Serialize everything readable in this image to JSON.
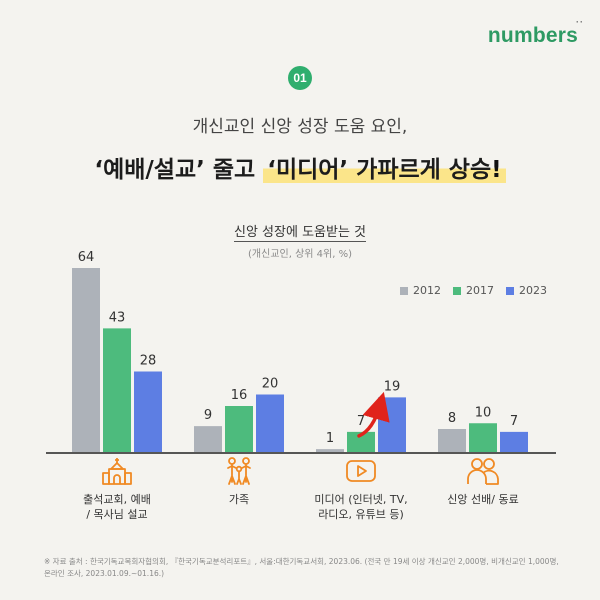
{
  "brand": {
    "logo": "numbers",
    "logo_dots": "··"
  },
  "badge": "01",
  "subtitle": "개신교인 신앙 성장 도움 요인,",
  "headline": {
    "part1": "‘예배/설교’ 줄고 ",
    "highlight": "‘미디어’ 가파르게 상승",
    "emphasis": "!"
  },
  "chart_data": {
    "type": "bar",
    "title": "신앙 성장에 도움받는 것",
    "note": "(개신교인, 상위 4위, %)",
    "categories": [
      "출석교회, 예배\n/ 목사님 설교",
      "가족",
      "미디어 (인터넷, TV,\n라디오, 유튜브 등)",
      "신앙 선배/ 동료"
    ],
    "series": [
      {
        "name": "2012",
        "color": "#adb2b9",
        "values": [
          64,
          9,
          1,
          8
        ]
      },
      {
        "name": "2017",
        "color": "#4dbb7d",
        "values": [
          43,
          16,
          7,
          10
        ]
      },
      {
        "name": "2023",
        "color": "#5d7ee3",
        "values": [
          28,
          20,
          19,
          7
        ]
      }
    ],
    "ylim": [
      0,
      64
    ],
    "legend_position": "top-right",
    "highlight_arrow": {
      "category": 2,
      "color": "#e0231b"
    }
  },
  "icons": [
    "church-icon",
    "family-icon",
    "video-play-icon",
    "friends-icon"
  ],
  "accent_color": "#f08a24",
  "source": "※ 자료 출처 : 한국기독교목회자협의회, 『한국기독교분석리포트』, 서울:대한기독교서회, 2023.06. (전국 만 19세 이상 개신교인 2,000명, 비개신교인 1,000명, 온라인 조사, 2023.01.09.~01.16.)"
}
